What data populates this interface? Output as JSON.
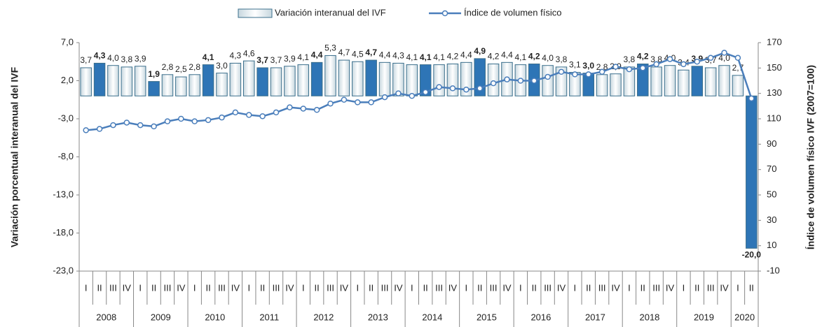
{
  "chart_data": {
    "type": "bar",
    "ylabel": "Variación porcentual interanual del IVF",
    "y2label": "Índice de volumen físico IVF (2007=100)",
    "categories": [
      "I",
      "II",
      "III",
      "IV",
      "I",
      "II",
      "III",
      "IV",
      "I",
      "II",
      "III",
      "IV",
      "I",
      "II",
      "III",
      "IV",
      "I",
      "II",
      "III",
      "IV",
      "I",
      "II",
      "III",
      "IV",
      "I",
      "II",
      "III",
      "IV",
      "I",
      "II",
      "III",
      "IV",
      "I",
      "II",
      "III",
      "IV",
      "I",
      "II",
      "III",
      "IV",
      "I",
      "II",
      "III",
      "IV",
      "I",
      "II",
      "III",
      "IV",
      "I",
      "II"
    ],
    "years": [
      "2008",
      "2009",
      "2010",
      "2011",
      "2012",
      "2013",
      "2014",
      "2015",
      "2016",
      "2017",
      "2018",
      "2019",
      "2020"
    ],
    "ylim": [
      -23,
      7
    ],
    "yticks": [
      {
        "value": 7,
        "label": "7,0"
      },
      {
        "value": 2,
        "label": "2,0"
      },
      {
        "value": -3,
        "label": "-3,0"
      },
      {
        "value": -8,
        "label": "-8,0"
      },
      {
        "value": -13,
        "label": "-13,0"
      },
      {
        "value": -18,
        "label": "-18,0"
      },
      {
        "value": -23,
        "label": "-23,0"
      }
    ],
    "y2lim": [
      -10,
      170
    ],
    "y2ticks": [
      170,
      150,
      130,
      110,
      90,
      70,
      50,
      30,
      10,
      -10
    ],
    "series": [
      {
        "name": "Variación interanual del IVF",
        "type": "bar",
        "color": "#e4edf1",
        "stroke": "#3b6f8c",
        "highlight_color": "#2e75b6",
        "values": [
          3.7,
          4.3,
          4.0,
          3.8,
          3.9,
          1.9,
          2.8,
          2.5,
          2.8,
          4.1,
          3.0,
          4.3,
          4.6,
          3.7,
          3.7,
          3.9,
          4.1,
          4.4,
          5.3,
          4.7,
          4.5,
          4.7,
          4.4,
          4.3,
          4.1,
          4.1,
          4.1,
          4.2,
          4.4,
          4.9,
          4.2,
          4.4,
          4.1,
          4.2,
          4.0,
          3.8,
          3.1,
          3.0,
          2.8,
          2.9,
          3.8,
          4.2,
          3.8,
          4.0,
          3.4,
          3.9,
          3.7,
          4.0,
          2.7,
          -20.0
        ],
        "value_labels": [
          "3,7",
          "4,3",
          "4,0",
          "3,8",
          "3,9",
          "1,9",
          "2,8",
          "2,5",
          "2,8",
          "4,1",
          "3,0",
          "4,3",
          "4,6",
          "3,7",
          "3,7",
          "3,9",
          "4,1",
          "4,4",
          "5,3",
          "4,7",
          "4,5",
          "4,7",
          "4,4",
          "4,3",
          "4,1",
          "4,1",
          "4,1",
          "4,2",
          "4,4",
          "4,9",
          "4,2",
          "4,4",
          "4,1",
          "4,2",
          "4,0",
          "3,8",
          "3,1",
          "3,0",
          "2,8",
          "2,9",
          "3,8",
          "4,2",
          "3,8",
          "4,0",
          "3,4",
          "3,9",
          "3,7",
          "4,0",
          "2,7",
          "-20,0"
        ]
      },
      {
        "name": "Índice de volumen físico",
        "type": "line",
        "axis": "y2",
        "color": "#4a7ebb",
        "values": [
          101,
          102,
          105,
          107,
          105,
          104,
          108,
          110,
          108,
          109,
          111,
          115,
          113,
          112,
          115,
          119,
          118,
          117,
          122,
          125,
          123,
          123,
          127,
          130,
          128,
          131,
          135,
          134,
          133,
          134,
          138,
          141,
          140,
          140,
          143,
          147,
          145,
          145,
          147,
          151,
          149,
          150,
          153,
          157,
          153,
          155,
          158,
          162,
          158,
          126
        ]
      }
    ]
  }
}
